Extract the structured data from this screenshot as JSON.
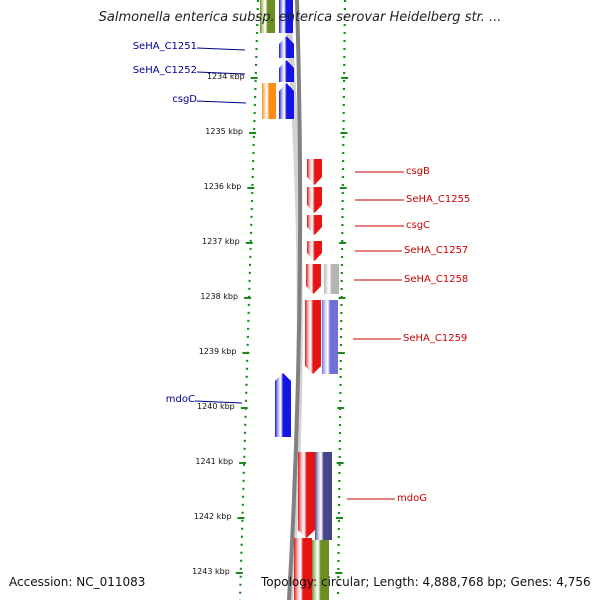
{
  "title": "Salmonella enterica subsp. enterica serovar Heidelberg str. ...",
  "footer": {
    "accession": "Accession: NC_011083",
    "topology": "Topology: circular; Length: 4,888,768 bp; Genes: 4,756"
  },
  "colors": {
    "blue": "#1414e6",
    "red": "#e61414",
    "orange": "#ff8c14",
    "gray": "#b4b4b4",
    "lavender": "#7070d8",
    "navy": "#46448a",
    "olive": "#6b8e23",
    "dots": "#1a8a1a",
    "backbone": "#808080"
  },
  "ticks": [
    {
      "label": "1234 kbp",
      "kbp": 1234
    },
    {
      "label": "1235 kbp",
      "kbp": 1235
    },
    {
      "label": "1236 kbp",
      "kbp": 1236
    },
    {
      "label": "1237 kbp",
      "kbp": 1237
    },
    {
      "label": "1238 kbp",
      "kbp": 1238
    },
    {
      "label": "1239 kbp",
      "kbp": 1239
    },
    {
      "label": "1240 kbp",
      "kbp": 1240
    },
    {
      "label": "1241 kbp",
      "kbp": 1241
    },
    {
      "label": "1242 kbp",
      "kbp": 1242
    },
    {
      "label": "1243 kbp",
      "kbp": 1243
    }
  ],
  "left_labels": [
    {
      "name": "SeHA_C1251",
      "color": "#00008b"
    },
    {
      "name": "SeHA_C1252",
      "color": "#00008b"
    },
    {
      "name": "csgD",
      "color": "#00008b"
    },
    {
      "name": "mdoC",
      "color": "#00008b"
    }
  ],
  "right_labels": [
    {
      "name": "csgB",
      "color": "#cc0000"
    },
    {
      "name": "SeHA_C1255",
      "color": "#cc0000"
    },
    {
      "name": "csgC",
      "color": "#cc0000"
    },
    {
      "name": "SeHA_C1257",
      "color": "#cc0000"
    },
    {
      "name": "SeHA_C1258",
      "color": "#cc0000"
    },
    {
      "name": "SeHA_C1259",
      "color": "#cc0000"
    },
    {
      "name": "mdoG",
      "color": "#cc0000"
    }
  ]
}
